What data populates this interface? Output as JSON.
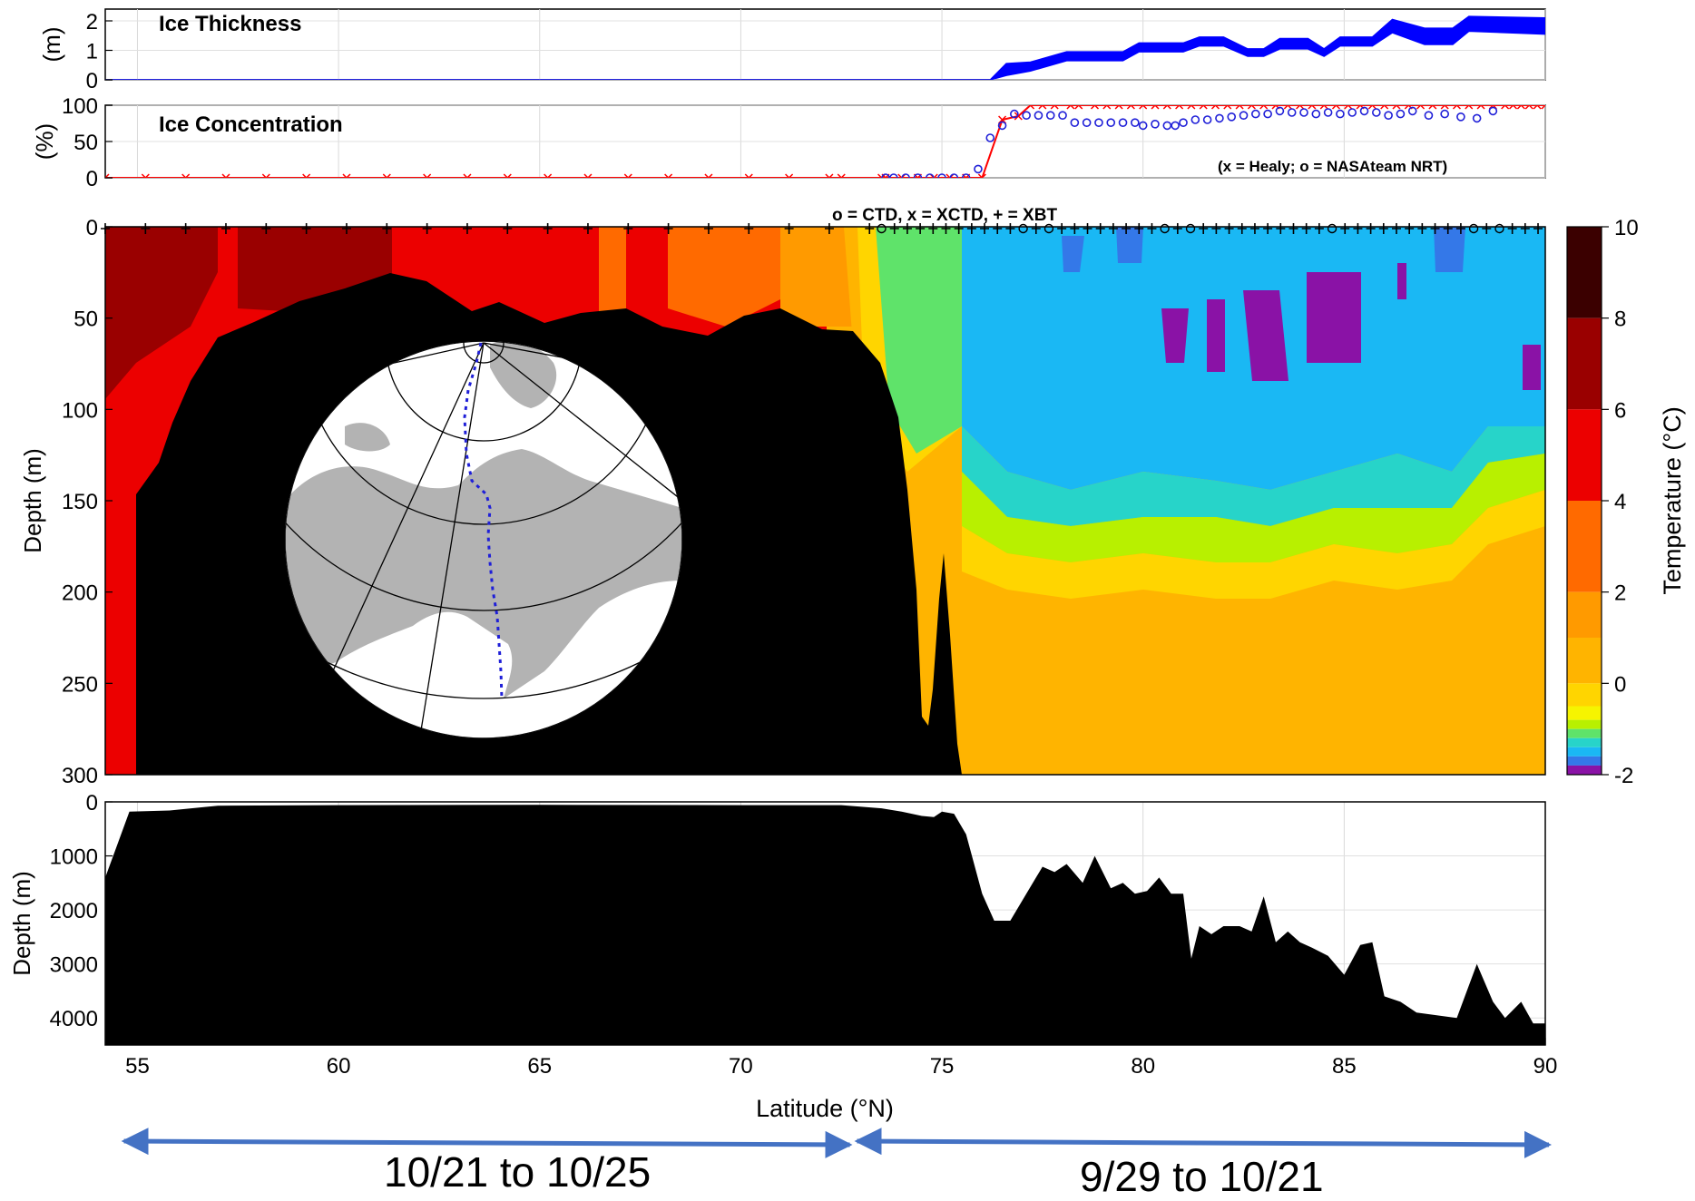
{
  "chart_data": [
    {
      "id": "ice_thickness",
      "type": "area",
      "title": "Ice Thickness",
      "ylabel": "(m)",
      "xlim": [
        54.2,
        90
      ],
      "ylim": [
        0,
        2.4
      ],
      "yticks": [
        0,
        1,
        2
      ],
      "grid": true,
      "upper": [
        [
          54.2,
          0
        ],
        [
          76.2,
          0
        ],
        [
          76.6,
          0.55
        ],
        [
          77.2,
          0.6
        ],
        [
          78.1,
          0.95
        ],
        [
          79.5,
          0.95
        ],
        [
          79.9,
          1.25
        ],
        [
          81.0,
          1.25
        ],
        [
          81.4,
          1.45
        ],
        [
          82.0,
          1.45
        ],
        [
          82.6,
          1.05
        ],
        [
          83.0,
          1.05
        ],
        [
          83.4,
          1.4
        ],
        [
          84.1,
          1.4
        ],
        [
          84.5,
          1.05
        ],
        [
          84.9,
          1.45
        ],
        [
          85.7,
          1.45
        ],
        [
          86.2,
          2.05
        ],
        [
          87.0,
          1.75
        ],
        [
          87.7,
          1.75
        ],
        [
          88.1,
          2.15
        ],
        [
          90,
          2.1
        ]
      ],
      "lower": [
        [
          54.2,
          0
        ],
        [
          76.2,
          0
        ],
        [
          76.6,
          0.15
        ],
        [
          77.2,
          0.3
        ],
        [
          78.1,
          0.65
        ],
        [
          79.5,
          0.65
        ],
        [
          79.9,
          0.95
        ],
        [
          81.0,
          0.95
        ],
        [
          81.4,
          1.15
        ],
        [
          82.0,
          1.15
        ],
        [
          82.6,
          0.8
        ],
        [
          83.0,
          0.8
        ],
        [
          83.4,
          1.05
        ],
        [
          84.1,
          1.05
        ],
        [
          84.5,
          0.8
        ],
        [
          84.9,
          1.15
        ],
        [
          85.7,
          1.15
        ],
        [
          86.2,
          1.6
        ],
        [
          87.0,
          1.2
        ],
        [
          87.7,
          1.2
        ],
        [
          88.1,
          1.65
        ],
        [
          90,
          1.55
        ]
      ]
    },
    {
      "id": "ice_concentration",
      "type": "line",
      "title": "Ice Concentration",
      "ylabel": "(%)",
      "xlim": [
        54.2,
        90
      ],
      "ylim": [
        0,
        100
      ],
      "yticks": [
        0,
        50,
        100
      ],
      "grid": true,
      "annotation": "(x = Healy; o = NASAteam NRT)",
      "series": [
        {
          "marker": "x",
          "color": "#ff0000",
          "x": [
            54.2,
            55.2,
            56.2,
            57.2,
            58.2,
            59.2,
            60.2,
            61.2,
            62.2,
            63.2,
            64.2,
            65.2,
            66.2,
            67.2,
            68.2,
            69.2,
            70.2,
            71.2,
            72.2,
            72.5,
            73.5,
            73.6,
            74.0,
            74.4,
            74.8,
            75.2,
            75.6,
            76.0,
            76.5,
            76.9,
            77.2,
            77.5,
            77.8,
            78.2,
            78.4,
            78.8,
            79.1,
            79.4,
            79.7,
            80.0,
            80.3,
            80.6,
            80.9,
            81.2,
            81.5,
            81.8,
            82.1,
            82.4,
            82.7,
            83.0,
            83.3,
            83.6,
            83.9,
            84.2,
            84.5,
            84.8,
            85.1,
            85.4,
            85.7,
            86.0,
            86.3,
            86.6,
            86.9,
            87.2,
            87.5,
            87.8,
            88.1,
            88.4,
            88.7,
            89.0,
            89.2,
            89.4,
            89.6,
            89.8,
            90.0
          ],
          "y": [
            0,
            0,
            0,
            0,
            0,
            0,
            0,
            0,
            0,
            0,
            0,
            0,
            0,
            0,
            0,
            0,
            0,
            0,
            0,
            0,
            0,
            0,
            0,
            0,
            0,
            0,
            0,
            0,
            80,
            85,
            100,
            100,
            100,
            100,
            100,
            100,
            100,
            100,
            100,
            100,
            100,
            100,
            100,
            100,
            100,
            100,
            100,
            100,
            100,
            100,
            100,
            100,
            100,
            100,
            100,
            100,
            100,
            100,
            100,
            100,
            100,
            100,
            100,
            100,
            100,
            100,
            100,
            100,
            100,
            100,
            100,
            100,
            100,
            100,
            100
          ]
        },
        {
          "marker": "o",
          "color": "#1f1fd8",
          "x": [
            73.6,
            73.8,
            74.1,
            74.4,
            74.7,
            75.0,
            75.3,
            75.6,
            75.9,
            76.2,
            76.5,
            76.8,
            77.1,
            77.4,
            77.7,
            78.0,
            78.3,
            78.6,
            78.9,
            79.2,
            79.5,
            79.8,
            80.0,
            80.3,
            80.6,
            80.8,
            81.0,
            81.3,
            81.6,
            81.9,
            82.2,
            82.5,
            82.8,
            83.1,
            83.4,
            83.7,
            84.0,
            84.3,
            84.6,
            84.9,
            85.2,
            85.5,
            85.8,
            86.1,
            86.4,
            86.7,
            87.1,
            87.5,
            87.9,
            88.3,
            88.7
          ],
          "y": [
            0,
            0,
            0,
            0,
            0,
            0,
            0,
            0,
            12,
            55,
            72,
            88,
            86,
            86,
            86,
            86,
            76,
            76,
            76,
            76,
            76,
            76,
            72,
            74,
            72,
            72,
            76,
            80,
            80,
            82,
            84,
            86,
            88,
            88,
            92,
            90,
            90,
            88,
            90,
            88,
            90,
            92,
            90,
            86,
            88,
            92,
            86,
            88,
            84,
            82,
            92
          ]
        }
      ]
    },
    {
      "id": "temperature_section",
      "type": "heatmap",
      "annotation": "o = CTD, x = XCTD, + = XBT",
      "ylabel": "Depth (m)",
      "xlim": [
        54.2,
        90
      ],
      "ylim": [
        300,
        0
      ],
      "yticks": [
        0,
        50,
        100,
        150,
        200,
        250,
        300
      ],
      "colorbar": {
        "label": "Temperature (°C)",
        "ticks": [
          10,
          8,
          6,
          4,
          2,
          0,
          -2
        ],
        "range": [
          -2,
          10
        ],
        "bands": [
          {
            "from": 8,
            "to": 10,
            "color": "#3b0000"
          },
          {
            "from": 6,
            "to": 8,
            "color": "#9a0000"
          },
          {
            "from": 4,
            "to": 6,
            "color": "#ec0000"
          },
          {
            "from": 2,
            "to": 4,
            "color": "#ff6a00"
          },
          {
            "from": 1,
            "to": 2,
            "color": "#ff9a00"
          },
          {
            "from": 0,
            "to": 1,
            "color": "#ffb400"
          },
          {
            "from": -0.5,
            "to": 0,
            "color": "#ffd500"
          },
          {
            "from": -0.8,
            "to": -0.5,
            "color": "#f6f400"
          },
          {
            "from": -1.0,
            "to": -0.8,
            "color": "#b8f000"
          },
          {
            "from": -1.2,
            "to": -1.0,
            "color": "#5fe36a"
          },
          {
            "from": -1.4,
            "to": -1.2,
            "color": "#27d4c9"
          },
          {
            "from": -1.6,
            "to": -1.4,
            "color": "#1ab8f4"
          },
          {
            "from": -1.8,
            "to": -1.6,
            "color": "#3478e8"
          },
          {
            "from": -2.0,
            "to": -1.8,
            "color": "#8a12a6"
          }
        ]
      }
    },
    {
      "id": "bathymetry",
      "type": "area",
      "ylabel": "Depth (m)",
      "xlabel": "Latitude (°N)",
      "xlim": [
        54.2,
        90
      ],
      "ylim": [
        4500,
        0
      ],
      "yticks": [
        0,
        1000,
        2000,
        3000,
        4000
      ],
      "xticks": [
        55,
        60,
        65,
        70,
        75,
        80,
        85,
        90
      ],
      "grid": true,
      "profile": [
        [
          54.2,
          1400
        ],
        [
          54.8,
          180
        ],
        [
          55.8,
          160
        ],
        [
          57,
          70
        ],
        [
          60,
          60
        ],
        [
          65,
          55
        ],
        [
          70,
          60
        ],
        [
          72.5,
          60
        ],
        [
          73.5,
          120
        ],
        [
          74,
          180
        ],
        [
          74.5,
          260
        ],
        [
          74.8,
          280
        ],
        [
          75.0,
          180
        ],
        [
          75.3,
          220
        ],
        [
          75.6,
          600
        ],
        [
          76.0,
          1700
        ],
        [
          76.3,
          2200
        ],
        [
          76.7,
          2200
        ],
        [
          77.1,
          1700
        ],
        [
          77.5,
          1200
        ],
        [
          77.8,
          1300
        ],
        [
          78.1,
          1150
        ],
        [
          78.5,
          1500
        ],
        [
          78.8,
          1000
        ],
        [
          79.2,
          1600
        ],
        [
          79.5,
          1500
        ],
        [
          79.8,
          1700
        ],
        [
          80.1,
          1650
        ],
        [
          80.4,
          1400
        ],
        [
          80.7,
          1700
        ],
        [
          81.0,
          1700
        ],
        [
          81.2,
          2900
        ],
        [
          81.4,
          2300
        ],
        [
          81.7,
          2450
        ],
        [
          82.0,
          2300
        ],
        [
          82.4,
          2300
        ],
        [
          82.7,
          2400
        ],
        [
          83.0,
          1750
        ],
        [
          83.3,
          2600
        ],
        [
          83.6,
          2400
        ],
        [
          83.9,
          2600
        ],
        [
          84.2,
          2700
        ],
        [
          84.6,
          2850
        ],
        [
          85.0,
          3200
        ],
        [
          85.4,
          2650
        ],
        [
          85.7,
          2600
        ],
        [
          86.0,
          3600
        ],
        [
          86.4,
          3700
        ],
        [
          86.8,
          3900
        ],
        [
          87.3,
          3950
        ],
        [
          87.8,
          4000
        ],
        [
          88.3,
          3000
        ],
        [
          88.7,
          3700
        ],
        [
          89.0,
          4000
        ],
        [
          89.4,
          3700
        ],
        [
          89.7,
          4100
        ],
        [
          90.0,
          4100
        ]
      ]
    }
  ],
  "date_ranges": [
    {
      "label": "10/21 to 10/25",
      "from_lat": 54.8,
      "to_lat": 72.8
    },
    {
      "label": "9/29 to 10/21",
      "from_lat": 72.8,
      "to_lat": 90
    }
  ]
}
